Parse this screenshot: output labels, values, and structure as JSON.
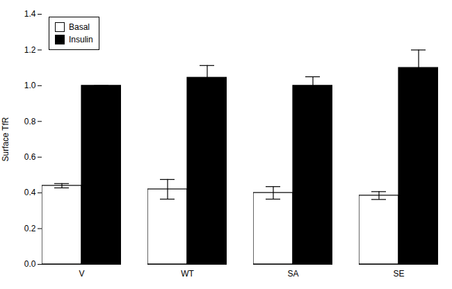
{
  "chart_data": {
    "type": "bar",
    "categories": [
      "V",
      "WT",
      "SA",
      "SE"
    ],
    "series": [
      {
        "name": "Basal",
        "color": "#ffffff",
        "values": [
          0.44,
          0.42,
          0.4,
          0.385
        ],
        "errors": [
          0.012,
          0.055,
          0.035,
          0.022
        ]
      },
      {
        "name": "Insulin",
        "color": "#000000",
        "values": [
          1.0,
          1.045,
          1.0,
          1.1
        ],
        "errors": [
          0.0,
          0.068,
          0.05,
          0.1
        ]
      }
    ],
    "ylabel": "Surface TfR",
    "ylim": [
      0.0,
      1.4
    ],
    "yticks": [
      {
        "value": 0,
        "label": "0.0"
      },
      0.2,
      0.4,
      0.6,
      0.8,
      {
        "value": 1,
        "label": "1.0"
      },
      1.2,
      1.4
    ],
    "legend": "upper left"
  }
}
